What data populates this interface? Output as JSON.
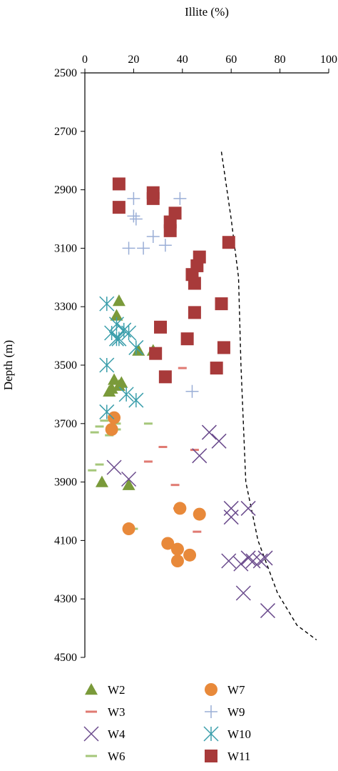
{
  "chart_data": {
    "type": "scatter",
    "xlabel": "Illite (%)",
    "ylabel": "Depth (m)",
    "xlim": [
      0,
      100
    ],
    "ylim": [
      2500,
      4500
    ],
    "y_inverted": true,
    "x_axis_position": "top",
    "xticks": [
      0,
      20,
      40,
      60,
      80,
      100
    ],
    "yticks": [
      2500,
      2700,
      2900,
      3100,
      3300,
      3500,
      3700,
      3900,
      4100,
      4300,
      4500
    ],
    "legend_position": "bottom",
    "series": [
      {
        "name": "W2",
        "marker": "triangle",
        "color": "#7a9a3a",
        "points": [
          [
            14,
            3280
          ],
          [
            13,
            3330
          ],
          [
            12,
            3550
          ],
          [
            11,
            3580
          ],
          [
            10,
            3590
          ],
          [
            15,
            3560
          ],
          [
            14,
            3570
          ],
          [
            22,
            3450
          ],
          [
            28,
            3450
          ],
          [
            7,
            3900
          ],
          [
            18,
            3910
          ]
        ]
      },
      {
        "name": "W3",
        "marker": "dash",
        "color": "#e07a72",
        "points": [
          [
            40,
            3510
          ],
          [
            32,
            3780
          ],
          [
            26,
            3830
          ],
          [
            37,
            3910
          ],
          [
            38,
            3990
          ],
          [
            45,
            3790
          ],
          [
            46,
            4070
          ]
        ]
      },
      {
        "name": "W4",
        "marker": "x",
        "color": "#6a4a8c",
        "points": [
          [
            51,
            3730
          ],
          [
            55,
            3760
          ],
          [
            47,
            3810
          ],
          [
            12,
            3850
          ],
          [
            18,
            3890
          ],
          [
            59,
            4170
          ],
          [
            64,
            4180
          ],
          [
            67,
            4160
          ],
          [
            69,
            4170
          ],
          [
            72,
            4170
          ],
          [
            74,
            4160
          ],
          [
            60,
            3990
          ],
          [
            60,
            4020
          ],
          [
            67,
            3990
          ],
          [
            65,
            4280
          ],
          [
            75,
            4340
          ]
        ]
      },
      {
        "name": "W6",
        "marker": "dash",
        "color": "#a5c77a",
        "points": [
          [
            4,
            3730
          ],
          [
            6,
            3710
          ],
          [
            8,
            3690
          ],
          [
            13,
            3700
          ],
          [
            13,
            3720
          ],
          [
            10,
            3740
          ],
          [
            26,
            3700
          ],
          [
            6,
            3840
          ],
          [
            3,
            3860
          ],
          [
            20,
            4060
          ]
        ]
      },
      {
        "name": "W7",
        "marker": "circle",
        "color": "#e8893a",
        "points": [
          [
            12,
            3680
          ],
          [
            11,
            3720
          ],
          [
            39,
            3990
          ],
          [
            47,
            4010
          ],
          [
            18,
            4060
          ],
          [
            34,
            4110
          ],
          [
            38,
            4130
          ],
          [
            43,
            4150
          ],
          [
            38,
            4170
          ]
        ]
      },
      {
        "name": "W9",
        "marker": "plus",
        "color": "#9aaed6",
        "points": [
          [
            20,
            2930
          ],
          [
            39,
            2930
          ],
          [
            20,
            2990
          ],
          [
            21,
            3000
          ],
          [
            28,
            3060
          ],
          [
            18,
            3100
          ],
          [
            24,
            3100
          ],
          [
            33,
            3090
          ],
          [
            44,
            3590
          ]
        ]
      },
      {
        "name": "W10",
        "marker": "asterisk",
        "color": "#3a9eab",
        "points": [
          [
            9,
            3290
          ],
          [
            13,
            3360
          ],
          [
            16,
            3380
          ],
          [
            18,
            3390
          ],
          [
            11,
            3390
          ],
          [
            13,
            3410
          ],
          [
            14,
            3410
          ],
          [
            21,
            3440
          ],
          [
            9,
            3500
          ],
          [
            17,
            3600
          ],
          [
            21,
            3620
          ],
          [
            9,
            3660
          ]
        ]
      },
      {
        "name": "W11",
        "marker": "square",
        "color": "#a83a3a",
        "points": [
          [
            14,
            2880
          ],
          [
            28,
            2910
          ],
          [
            28,
            2930
          ],
          [
            14,
            2960
          ],
          [
            37,
            2980
          ],
          [
            35,
            3010
          ],
          [
            35,
            3040
          ],
          [
            59,
            3080
          ],
          [
            47,
            3130
          ],
          [
            46,
            3160
          ],
          [
            44,
            3190
          ],
          [
            45,
            3220
          ],
          [
            56,
            3290
          ],
          [
            45,
            3320
          ],
          [
            31,
            3370
          ],
          [
            42,
            3410
          ],
          [
            57,
            3440
          ],
          [
            29,
            3460
          ],
          [
            54,
            3510
          ],
          [
            33,
            3540
          ]
        ]
      }
    ],
    "trend_line": {
      "style": "dashed",
      "color": "#000000",
      "points": [
        [
          56,
          2770
        ],
        [
          60,
          3000
        ],
        [
          63,
          3200
        ],
        [
          64,
          3500
        ],
        [
          65,
          3700
        ],
        [
          66,
          3900
        ],
        [
          71,
          4100
        ],
        [
          79,
          4280
        ],
        [
          87,
          4390
        ],
        [
          95,
          4440
        ]
      ]
    }
  }
}
